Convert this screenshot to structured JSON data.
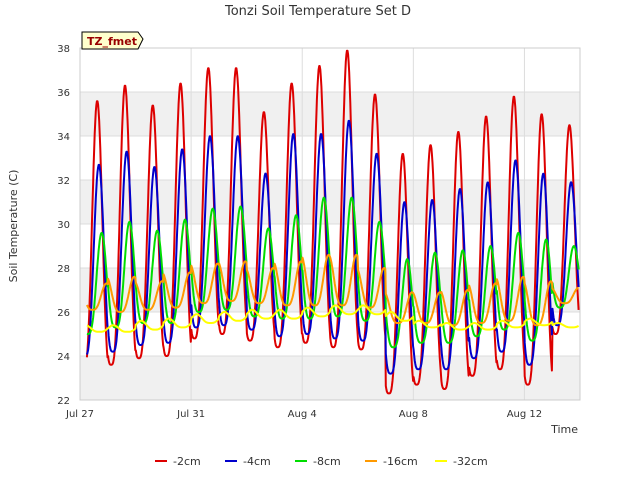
{
  "chart_data": {
    "type": "line",
    "title": "Tonzi Soil Temperature Set D",
    "xlabel": "Time",
    "ylabel": "Soil Temperature (C)",
    "ylim": [
      22,
      38
    ],
    "xlim": [
      0,
      18
    ],
    "y_ticks": [
      22,
      24,
      26,
      28,
      30,
      32,
      34,
      36,
      38
    ],
    "x_ticks": [
      {
        "label": "Jul 27",
        "day": 0
      },
      {
        "label": "Jul 31",
        "day": 4
      },
      {
        "label": "Aug 4",
        "day": 8
      },
      {
        "label": "Aug 8",
        "day": 12
      },
      {
        "label": "Aug 12",
        "day": 16
      }
    ],
    "annotation": "TZ_fmet",
    "grid": true,
    "legend_position": "bottom",
    "x_unit": "days since Jul 27",
    "series": [
      {
        "name": "-2cm",
        "color": "#dd0000",
        "phase": 0.62,
        "mins": [
          23.3,
          23.6,
          23.9,
          24.0,
          24.8,
          25.0,
          24.7,
          24.4,
          24.6,
          24.4,
          24.3,
          22.3,
          22.7,
          22.5,
          23.1,
          23.4,
          22.7,
          25.0
        ],
        "maxs": [
          35.6,
          36.3,
          35.4,
          36.4,
          37.1,
          37.1,
          35.1,
          36.4,
          37.2,
          37.9,
          35.9,
          33.2,
          33.6,
          34.2,
          34.9,
          35.8,
          35.0,
          34.5
        ]
      },
      {
        "name": "-4cm",
        "color": "#0000cc",
        "phase": 0.68,
        "mins": [
          24.0,
          24.2,
          24.5,
          24.6,
          25.3,
          25.4,
          25.2,
          24.9,
          25.0,
          24.8,
          24.7,
          23.2,
          23.4,
          23.4,
          23.9,
          24.2,
          23.6,
          25.4
        ],
        "maxs": [
          32.7,
          33.3,
          32.6,
          33.4,
          34.0,
          34.0,
          32.3,
          34.1,
          34.1,
          34.7,
          33.2,
          31.0,
          31.1,
          31.6,
          31.9,
          32.9,
          32.3,
          31.9
        ]
      },
      {
        "name": "-8cm",
        "color": "#00dd00",
        "phase": 0.78,
        "mins": [
          25.0,
          25.3,
          25.5,
          25.5,
          26.0,
          26.1,
          25.8,
          25.7,
          25.7,
          25.8,
          25.6,
          24.4,
          24.6,
          24.6,
          24.9,
          25.2,
          24.7,
          26.2
        ],
        "maxs": [
          29.6,
          30.1,
          29.7,
          30.2,
          30.7,
          30.8,
          29.8,
          30.4,
          31.2,
          31.2,
          30.1,
          28.4,
          28.7,
          28.8,
          29.0,
          29.6,
          29.3,
          29.0
        ]
      },
      {
        "name": "-16cm",
        "color": "#ff9900",
        "phase": 0.95,
        "mins": [
          26.1,
          26.0,
          26.1,
          26.2,
          26.4,
          26.5,
          26.4,
          26.3,
          26.3,
          26.3,
          26.2,
          25.5,
          25.5,
          25.4,
          25.5,
          25.6,
          25.4,
          26.4
        ],
        "maxs": [
          27.3,
          27.6,
          27.4,
          27.8,
          28.2,
          28.3,
          28.0,
          28.3,
          28.6,
          28.6,
          28.0,
          26.9,
          26.9,
          27.0,
          27.3,
          27.6,
          27.4,
          27.1
        ]
      },
      {
        "name": "-32cm",
        "color": "#ffff00",
        "phase": 0.2,
        "mins": [
          25.1,
          25.1,
          25.2,
          25.3,
          25.5,
          25.6,
          25.7,
          25.7,
          25.8,
          25.9,
          25.9,
          25.6,
          25.3,
          25.2,
          25.2,
          25.3,
          25.4,
          25.3
        ],
        "maxs": [
          25.4,
          25.4,
          25.6,
          25.7,
          25.9,
          26.0,
          26.1,
          26.1,
          26.2,
          26.3,
          26.3,
          26.0,
          25.6,
          25.5,
          25.5,
          25.6,
          25.7,
          25.5
        ]
      }
    ]
  }
}
